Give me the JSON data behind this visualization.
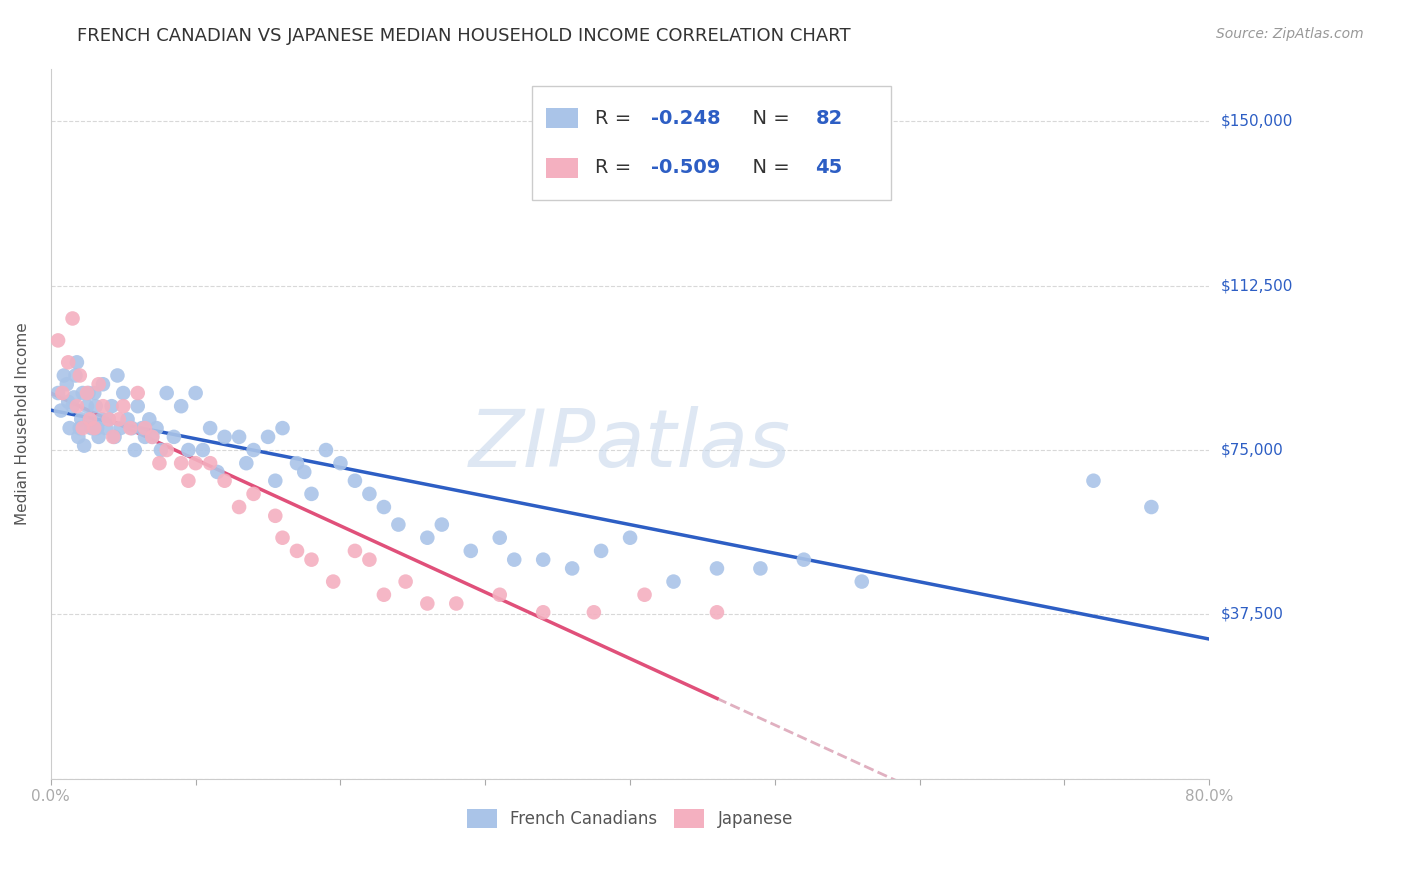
{
  "title": "FRENCH CANADIAN VS JAPANESE MEDIAN HOUSEHOLD INCOME CORRELATION CHART",
  "source": "Source: ZipAtlas.com",
  "ylabel": "Median Household Income",
  "yticks": [
    0,
    37500,
    75000,
    112500,
    150000
  ],
  "ytick_labels": [
    "",
    "$37,500",
    "$75,000",
    "$112,500",
    "$150,000"
  ],
  "xlim": [
    0.0,
    0.8
  ],
  "ylim": [
    0,
    162000
  ],
  "watermark": "ZIPatlas",
  "scatter_color1": "#aac4e8",
  "scatter_color2": "#f4b0c0",
  "line_color1": "#2d5ec4",
  "line_color2": "#e0507a",
  "line_color_ext": "#e0b0c0",
  "background": "#ffffff",
  "grid_color": "#d8d8d8",
  "legend_r1_text": "R = ",
  "legend_r1_val": "-0.248",
  "legend_n1_text": "N = ",
  "legend_n1_val": "82",
  "legend_r2_text": "R = ",
  "legend_r2_val": "-0.509",
  "legend_n2_text": "N = ",
  "legend_n2_val": "45",
  "french_canadians_x": [
    0.005,
    0.007,
    0.009,
    0.011,
    0.012,
    0.013,
    0.015,
    0.016,
    0.017,
    0.018,
    0.019,
    0.02,
    0.021,
    0.022,
    0.023,
    0.025,
    0.026,
    0.027,
    0.028,
    0.03,
    0.031,
    0.032,
    0.033,
    0.035,
    0.036,
    0.038,
    0.04,
    0.042,
    0.044,
    0.046,
    0.048,
    0.05,
    0.053,
    0.056,
    0.058,
    0.06,
    0.063,
    0.065,
    0.068,
    0.07,
    0.073,
    0.076,
    0.08,
    0.085,
    0.09,
    0.095,
    0.1,
    0.105,
    0.11,
    0.115,
    0.12,
    0.13,
    0.135,
    0.14,
    0.15,
    0.155,
    0.16,
    0.17,
    0.175,
    0.18,
    0.19,
    0.2,
    0.21,
    0.22,
    0.23,
    0.24,
    0.26,
    0.27,
    0.29,
    0.31,
    0.32,
    0.34,
    0.36,
    0.38,
    0.4,
    0.43,
    0.46,
    0.49,
    0.52,
    0.56,
    0.72,
    0.76
  ],
  "french_canadians_y": [
    88000,
    84000,
    92000,
    90000,
    86000,
    80000,
    85000,
    87000,
    92000,
    95000,
    78000,
    80000,
    82000,
    88000,
    76000,
    85000,
    88000,
    82000,
    80000,
    88000,
    85000,
    80000,
    78000,
    82000,
    90000,
    80000,
    82000,
    85000,
    78000,
    92000,
    80000,
    88000,
    82000,
    80000,
    75000,
    85000,
    80000,
    78000,
    82000,
    78000,
    80000,
    75000,
    88000,
    78000,
    85000,
    75000,
    88000,
    75000,
    80000,
    70000,
    78000,
    78000,
    72000,
    75000,
    78000,
    68000,
    80000,
    72000,
    70000,
    65000,
    75000,
    72000,
    68000,
    65000,
    62000,
    58000,
    55000,
    58000,
    52000,
    55000,
    50000,
    50000,
    48000,
    52000,
    55000,
    45000,
    48000,
    48000,
    50000,
    45000,
    68000,
    62000
  ],
  "japanese_x": [
    0.005,
    0.008,
    0.012,
    0.015,
    0.018,
    0.02,
    0.022,
    0.025,
    0.027,
    0.03,
    0.033,
    0.036,
    0.04,
    0.043,
    0.047,
    0.05,
    0.055,
    0.06,
    0.065,
    0.07,
    0.075,
    0.08,
    0.09,
    0.095,
    0.1,
    0.11,
    0.12,
    0.13,
    0.14,
    0.155,
    0.16,
    0.17,
    0.18,
    0.195,
    0.21,
    0.22,
    0.23,
    0.245,
    0.26,
    0.28,
    0.31,
    0.34,
    0.375,
    0.41,
    0.46
  ],
  "japanese_y": [
    100000,
    88000,
    95000,
    105000,
    85000,
    92000,
    80000,
    88000,
    82000,
    80000,
    90000,
    85000,
    82000,
    78000,
    82000,
    85000,
    80000,
    88000,
    80000,
    78000,
    72000,
    75000,
    72000,
    68000,
    72000,
    72000,
    68000,
    62000,
    65000,
    60000,
    55000,
    52000,
    50000,
    45000,
    52000,
    50000,
    42000,
    45000,
    40000,
    40000,
    42000,
    38000,
    38000,
    42000,
    38000
  ],
  "title_fontsize": 13,
  "axis_label_fontsize": 11,
  "tick_fontsize": 11,
  "legend_fontsize": 14,
  "source_fontsize": 10
}
